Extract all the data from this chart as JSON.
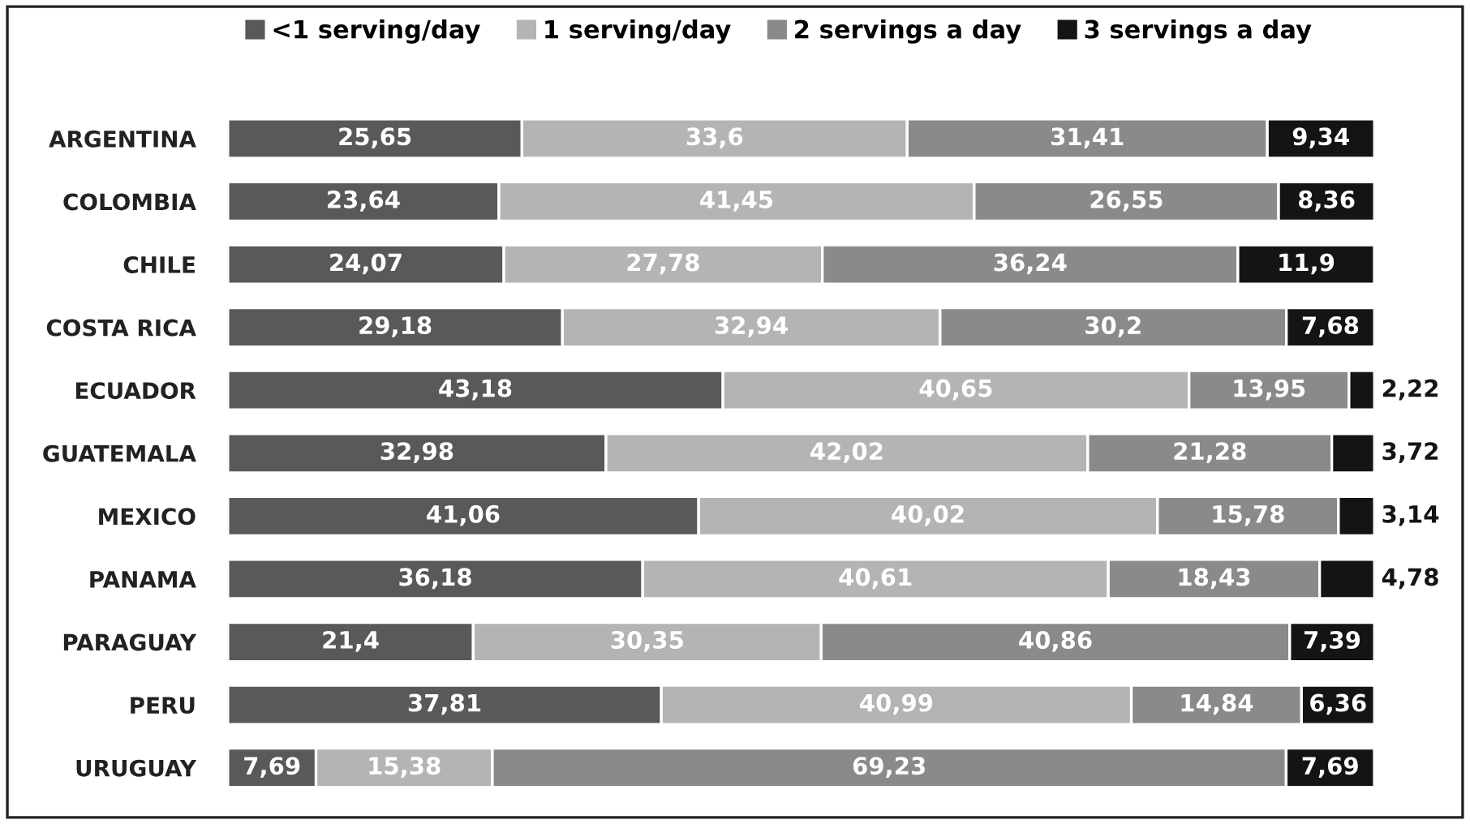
{
  "chart_data": {
    "type": "bar",
    "orientation": "horizontal",
    "stacked": true,
    "legend": "top",
    "categories": [
      "ARGENTINA",
      "COLOMBIA",
      "CHILE",
      "COSTA RICA",
      "ECUADOR",
      "GUATEMALA",
      "MEXICO",
      "PANAMA",
      "PARAGUAY",
      "PERU",
      "URUGUAY"
    ],
    "series": [
      {
        "name": "<1 serving/day",
        "color": "#595959",
        "values": [
          25.65,
          23.64,
          24.07,
          29.18,
          43.18,
          32.98,
          41.06,
          36.18,
          21.4,
          37.81,
          7.69
        ],
        "value_labels": [
          "25,65",
          "23,64",
          "24,07",
          "29,18",
          "43,18",
          "32,98",
          "41,06",
          "36,18",
          "21,4",
          "37,81",
          "7,69"
        ]
      },
      {
        "name": "1 serving/day",
        "color": "#b4b4b4",
        "values": [
          33.6,
          41.45,
          27.78,
          32.94,
          40.65,
          42.02,
          40.02,
          40.61,
          30.35,
          40.99,
          15.38
        ],
        "value_labels": [
          "33,6",
          "41,45",
          "27,78",
          "32,94",
          "40,65",
          "42,02",
          "40,02",
          "40,61",
          "30,35",
          "40,99",
          "15,38"
        ]
      },
      {
        "name": "2 servings a day",
        "color": "#8a8a8a",
        "values": [
          31.41,
          26.55,
          36.24,
          30.2,
          13.95,
          21.28,
          15.78,
          18.43,
          40.86,
          14.84,
          69.23
        ],
        "value_labels": [
          "31,41",
          "26,55",
          "36,24",
          "30,2",
          "13,95",
          "21,28",
          "15,78",
          "18,43",
          "40,86",
          "14,84",
          "69,23"
        ]
      },
      {
        "name": "3 servings a day",
        "color": "#141414",
        "values": [
          9.34,
          8.36,
          11.9,
          7.68,
          2.22,
          3.72,
          3.14,
          4.78,
          7.39,
          6.36,
          7.69
        ],
        "value_labels": [
          "9,34",
          "8,36",
          "11,9",
          "7,68",
          "2,22",
          "3,72",
          "3,14",
          "4,78",
          "7,39",
          "6,36",
          "7,69"
        ]
      }
    ]
  }
}
